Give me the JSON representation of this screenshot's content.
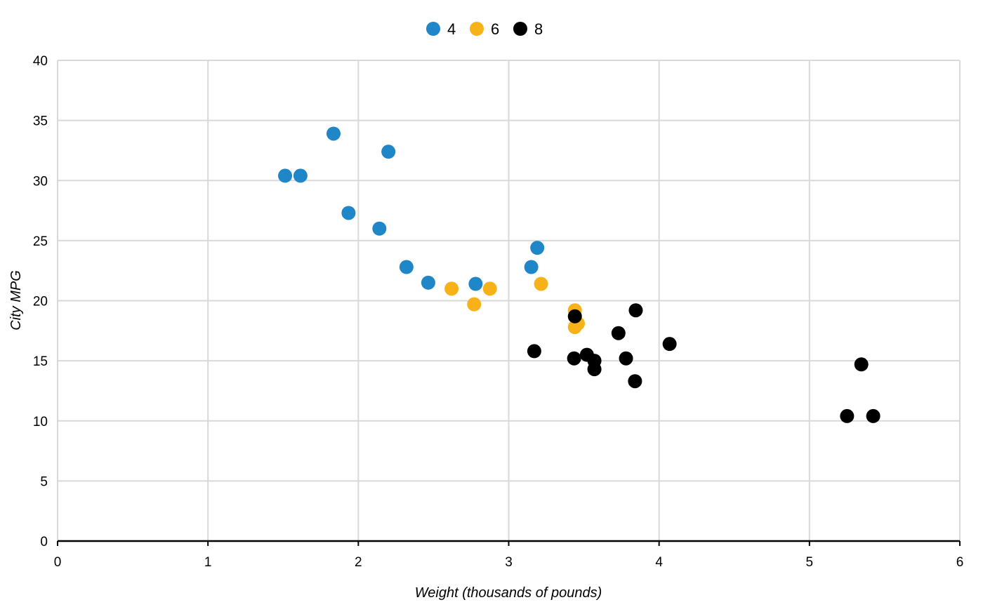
{
  "chart_data": {
    "type": "scatter",
    "xlabel": "Weight (thousands of pounds)",
    "ylabel": "City MPG",
    "xlim": [
      0,
      6
    ],
    "ylim": [
      0,
      40
    ],
    "x_ticks": [
      0,
      1,
      2,
      3,
      4,
      5,
      6
    ],
    "y_ticks": [
      0,
      5,
      10,
      15,
      20,
      25,
      30,
      35,
      40
    ],
    "grid": true,
    "legend_position": "top-center",
    "series": [
      {
        "name": "4",
        "color": "#1f86c8",
        "points": [
          {
            "x": 1.513,
            "y": 30.4
          },
          {
            "x": 1.615,
            "y": 30.4
          },
          {
            "x": 1.835,
            "y": 33.9
          },
          {
            "x": 1.935,
            "y": 27.3
          },
          {
            "x": 2.14,
            "y": 26.0
          },
          {
            "x": 2.2,
            "y": 32.4
          },
          {
            "x": 2.32,
            "y": 22.8
          },
          {
            "x": 2.465,
            "y": 21.5
          },
          {
            "x": 2.78,
            "y": 21.4
          },
          {
            "x": 3.15,
            "y": 22.8
          },
          {
            "x": 3.19,
            "y": 24.4
          }
        ]
      },
      {
        "name": "6",
        "color": "#f7b21a",
        "points": [
          {
            "x": 2.62,
            "y": 21.0
          },
          {
            "x": 2.77,
            "y": 19.7
          },
          {
            "x": 2.875,
            "y": 21.0
          },
          {
            "x": 3.215,
            "y": 21.4
          },
          {
            "x": 3.44,
            "y": 19.2
          },
          {
            "x": 3.46,
            "y": 18.1
          },
          {
            "x": 3.44,
            "y": 17.8
          }
        ]
      },
      {
        "name": "8",
        "color": "#000000",
        "points": [
          {
            "x": 3.17,
            "y": 15.8
          },
          {
            "x": 3.44,
            "y": 18.7
          },
          {
            "x": 3.435,
            "y": 15.2
          },
          {
            "x": 3.52,
            "y": 15.5
          },
          {
            "x": 3.57,
            "y": 14.3
          },
          {
            "x": 3.57,
            "y": 15.0
          },
          {
            "x": 3.73,
            "y": 17.3
          },
          {
            "x": 3.78,
            "y": 15.2
          },
          {
            "x": 3.84,
            "y": 13.3
          },
          {
            "x": 3.845,
            "y": 19.2
          },
          {
            "x": 4.07,
            "y": 16.4
          },
          {
            "x": 5.25,
            "y": 10.4
          },
          {
            "x": 5.345,
            "y": 14.7
          },
          {
            "x": 5.424,
            "y": 10.4
          }
        ]
      }
    ]
  }
}
